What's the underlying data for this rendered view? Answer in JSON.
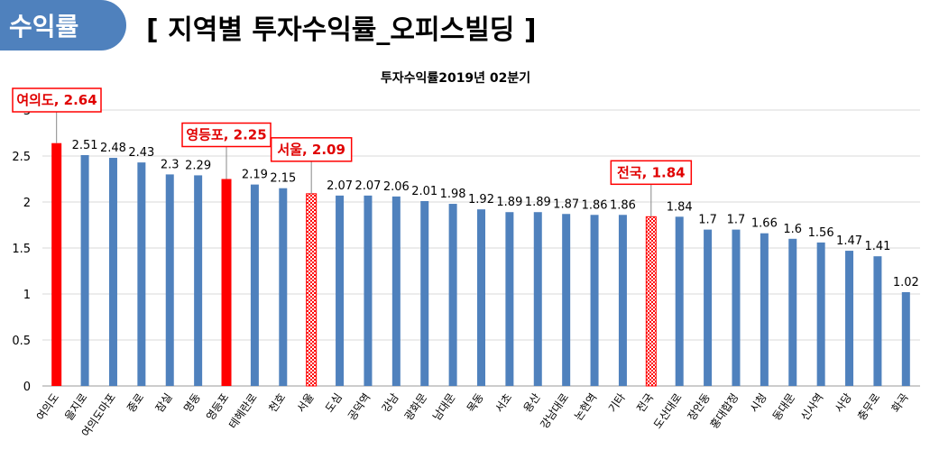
{
  "header": {
    "tab_label": "수익률",
    "slide_title": "[ 지역별 투자수익률_오피스빌딩 ]"
  },
  "colors": {
    "bar": "#4f81bd",
    "highlight": "#ff0000",
    "callout_text": "#e00000"
  },
  "chart_data": {
    "type": "bar",
    "title": "투자수익률2019년 02분기",
    "ylim": [
      0,
      3
    ],
    "yticks": [
      0,
      0.5,
      1,
      1.5,
      2,
      2.5,
      3
    ],
    "grid": true,
    "legend": "none",
    "categories": [
      "여의도",
      "을지로",
      "여의도마포",
      "종로",
      "잠실",
      "명동",
      "영등포",
      "테헤란로",
      "천호",
      "서울",
      "도심",
      "공덕역",
      "강남",
      "광화문",
      "남대문",
      "목동",
      "서초",
      "용산",
      "강남대로",
      "논현역",
      "기타",
      "전국",
      "도산대로",
      "장안동",
      "홍대합정",
      "시청",
      "동대문",
      "신사역",
      "사당",
      "충무로",
      "화곡"
    ],
    "values": [
      2.64,
      2.51,
      2.48,
      2.43,
      2.3,
      2.29,
      2.25,
      2.19,
      2.15,
      2.09,
      2.07,
      2.07,
      2.06,
      2.01,
      1.98,
      1.92,
      1.89,
      1.89,
      1.87,
      1.86,
      1.86,
      1.84,
      1.84,
      1.7,
      1.7,
      1.66,
      1.6,
      1.56,
      1.47,
      1.41,
      1.02
    ],
    "value_labels": [
      "",
      "2.51",
      "2.48",
      "2.43",
      "2.3",
      "2.29",
      "",
      "2.19",
      "2.15",
      "",
      "2.07",
      "2.07",
      "2.06",
      "2.01",
      "1.98",
      "1.92",
      "1.89",
      "1.89",
      "1.87",
      "1.86",
      "1.86",
      "",
      "1.84",
      "1.7",
      "1.7",
      "1.66",
      "1.6",
      "1.56",
      "1.47",
      "1.41",
      "1.02"
    ],
    "highlights": [
      {
        "index": 0,
        "style": "solid",
        "label": "여의도, 2.64"
      },
      {
        "index": 6,
        "style": "solid",
        "label": "영등포, 2.25"
      },
      {
        "index": 9,
        "style": "dotted",
        "label": "서울, 2.09"
      },
      {
        "index": 21,
        "style": "dotted",
        "label": "전국, 1.84"
      }
    ]
  }
}
